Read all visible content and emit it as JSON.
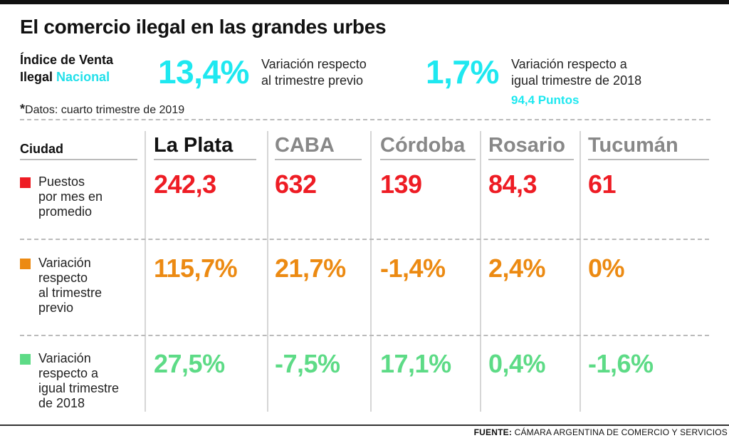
{
  "title": "El comercio ilegal en las grandes urbes",
  "index": {
    "label_line1": "Índice de Venta",
    "label_line2": "Ilegal",
    "label_highlight": "Nacional"
  },
  "kpis": [
    {
      "value": "13,4%",
      "desc_line1": "Variación respecto",
      "desc_line2": "al trimestre previo"
    },
    {
      "value": "1,7%",
      "desc_line1": "Variación respecto a",
      "desc_line2": "igual trimestre de 2018",
      "extra": "94,4 Puntos"
    }
  ],
  "footnote": {
    "star": "*",
    "text": "Datos: cuarto trimestre de 2019"
  },
  "table": {
    "header_label": "Ciudad",
    "cities": [
      "La Plata",
      "CABA",
      "Córdoba",
      "Rosario",
      "Tucumán"
    ],
    "rows": [
      {
        "label": [
          "Puestos",
          "por mes en",
          "promedio"
        ],
        "values": [
          "242,3",
          "632",
          "139",
          "84,3",
          "61"
        ]
      },
      {
        "label": [
          "Variación",
          "respecto",
          "al trimestre",
          "previo"
        ],
        "values": [
          "115,7%",
          "21,7%",
          "-1,4%",
          "2,4%",
          "0%"
        ]
      },
      {
        "label": [
          "Variación",
          "respecto a",
          "igual trimestre",
          "de 2018"
        ],
        "values": [
          "27,5%",
          "-7,5%",
          "17,1%",
          "0,4%",
          "-1,6%"
        ]
      }
    ]
  },
  "colors": {
    "accent": "#1ee8f0",
    "row1": "#ee1c24",
    "row2": "#ec8a12",
    "row3": "#5ddb86"
  },
  "source": {
    "label": "FUENTE:",
    "text": "CÁMARA ARGENTINA DE COMERCIO Y SERVICIOS"
  }
}
